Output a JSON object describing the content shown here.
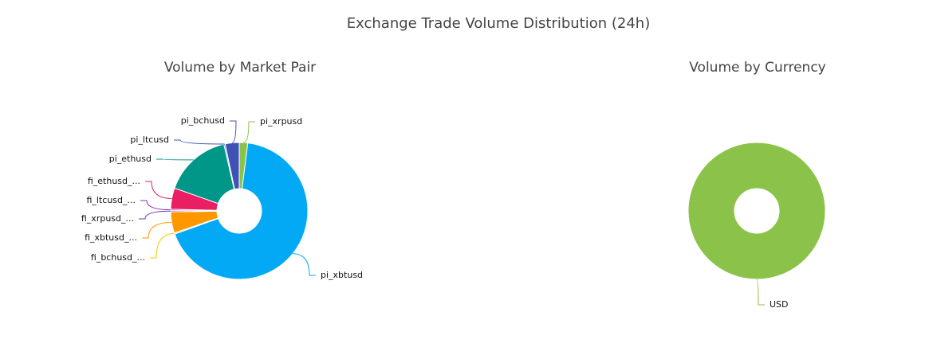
{
  "title": "Exchange Trade Volume Distribution (24h)",
  "chart_data": [
    {
      "type": "donut",
      "title": "Volume by Market Pair",
      "categories": [
        "pi_xrpusd",
        "pi_xbtusd",
        "fi_bchusd_...",
        "fi_xbtusd_...",
        "fi_xrpusd_...",
        "fi_ltcusd_...",
        "fi_ethusd_...",
        "pi_ethusd",
        "pi_ltcusd",
        "pi_bchusd"
      ],
      "values": [
        2,
        67.5,
        0.3,
        5,
        0.3,
        0.3,
        5,
        16,
        0.3,
        3.3
      ],
      "colors": [
        "#8bc34a",
        "#03a9f4",
        "#ffc107",
        "#ff9800",
        "#673ab7",
        "#9c27b0",
        "#e91e63",
        "#009688",
        "#3f51b5",
        "#3f51b5"
      ]
    },
    {
      "type": "donut",
      "title": "Volume by Currency",
      "categories": [
        "USD"
      ],
      "values": [
        100
      ],
      "colors": [
        "#8bc34a"
      ]
    }
  ]
}
